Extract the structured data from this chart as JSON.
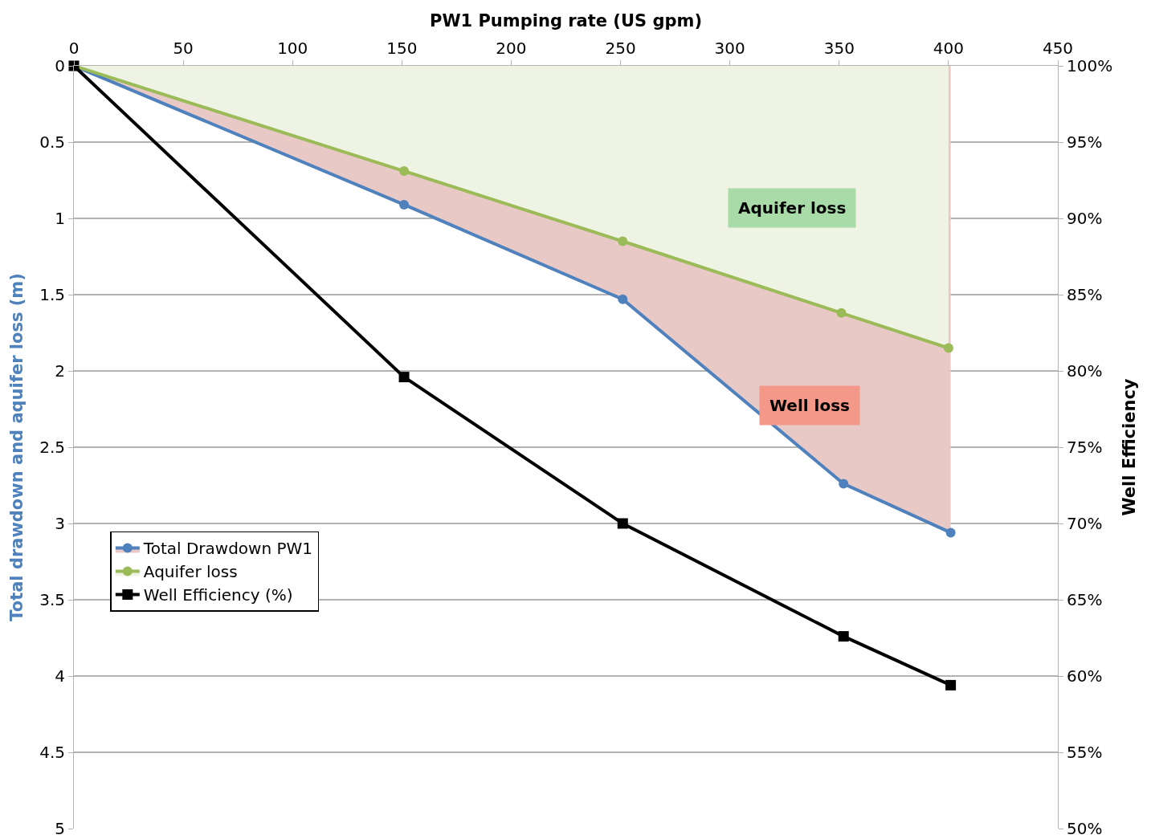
{
  "chart_data": {
    "type": "line",
    "xlabel": "PW1 Pumping rate (US gpm)",
    "ylabel": "Total drawdown and aquifer loss (m)",
    "y2label": "Well Efficiency",
    "xlim": [
      0,
      450
    ],
    "xticks": [
      0,
      50,
      100,
      150,
      200,
      250,
      300,
      350,
      400,
      450
    ],
    "ylim": [
      5,
      0
    ],
    "yticks": [
      0,
      0.5,
      1,
      1.5,
      2,
      2.5,
      3,
      3.5,
      4,
      4.5,
      5
    ],
    "y2lim": [
      50,
      100
    ],
    "y2ticks": [
      {
        "value": 100,
        "label": "100%"
      },
      {
        "value": 95,
        "label": "95%"
      },
      {
        "value": 90,
        "label": "90%"
      },
      {
        "value": 85,
        "label": "85%"
      },
      {
        "value": 80,
        "label": "80%"
      },
      {
        "value": 75,
        "label": "75%"
      },
      {
        "value": 70,
        "label": "70%"
      },
      {
        "value": 65,
        "label": "65%"
      },
      {
        "value": 60,
        "label": "60%"
      },
      {
        "value": 55,
        "label": "55%"
      },
      {
        "value": 50,
        "label": "50%"
      }
    ],
    "grid": "y",
    "legend": "left",
    "series": [
      {
        "type": "area",
        "name": "Total Drawdown PW1",
        "color": "#4f81bd",
        "marker": "circle",
        "x": [
          0,
          151,
          251,
          352,
          401
        ],
        "values": [
          0,
          0.91,
          1.53,
          2.74,
          3.06
        ]
      },
      {
        "type": "area",
        "name": "Aquifer loss",
        "color": "#9bbb59",
        "marker": "circle",
        "x": [
          0,
          151,
          251,
          351,
          400
        ],
        "values": [
          0,
          0.69,
          1.15,
          1.62,
          1.85
        ]
      },
      {
        "name": "Well Efficiency (%)",
        "color": "#000000",
        "marker": "square",
        "axis": "y2",
        "x": [
          0,
          151,
          251,
          352,
          401
        ],
        "values": [
          100,
          79.6,
          70,
          62.6,
          59.4
        ]
      }
    ],
    "annotations": [
      "Aquifer loss",
      "Well loss"
    ]
  }
}
